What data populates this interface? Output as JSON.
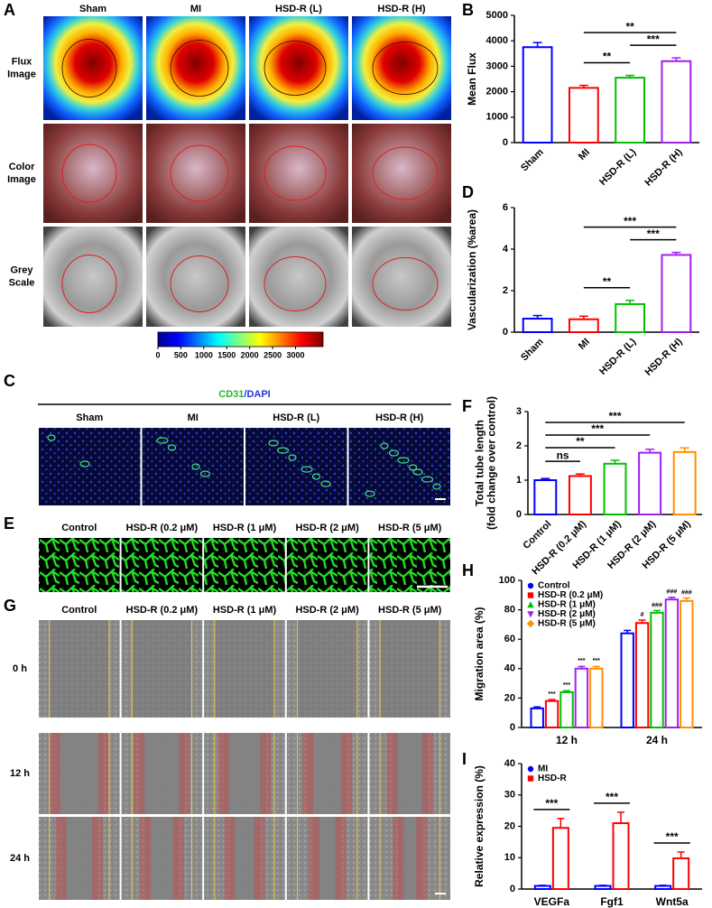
{
  "panel_labels": [
    "A",
    "B",
    "C",
    "D",
    "E",
    "F",
    "G",
    "H",
    "I"
  ],
  "panel_a": {
    "columns": [
      "Sham",
      "MI",
      "HSD-R (L)",
      "HSD-R (H)"
    ],
    "rows": [
      [
        "Flux",
        "Image"
      ],
      [
        "Color",
        "Image"
      ],
      [
        "Grey",
        "Scale"
      ]
    ],
    "colorbar": {
      "lim": [
        0,
        3600
      ],
      "ticks": [
        0,
        500,
        1000,
        1500,
        2000,
        2500,
        3000
      ]
    }
  },
  "panel_c": {
    "title": [
      "CD31",
      "/DAPI"
    ],
    "columns": [
      "Sham",
      "MI",
      "HSD-R (L)",
      "HSD-R (H)"
    ]
  },
  "panel_e": {
    "columns": [
      "Control",
      "HSD-R (0.2 μM)",
      "HSD-R (1 μM)",
      "HSD-R (2 μM)",
      "HSD-R (5 μM)"
    ]
  },
  "panel_g": {
    "columns": [
      "Control",
      "HSD-R (0.2 μM)",
      "HSD-R (1 μM)",
      "HSD-R (2 μM)",
      "HSD-R (5 μM)"
    ],
    "rows": [
      "0 h",
      "12 h",
      "24 h"
    ]
  },
  "chart_data": [
    {
      "type": "bar",
      "ylabel": "Mean Flux",
      "categories": [
        "Sham",
        "MI",
        "HSD-R (L)",
        "HSD-R (H)"
      ],
      "values": [
        3750,
        2150,
        2550,
        3200
      ],
      "errors": [
        180,
        100,
        90,
        130
      ],
      "colors": [
        "#0000ff",
        "#ff0000",
        "#00c000",
        "#a020f0"
      ],
      "ylim": [
        0,
        5000
      ],
      "yticks": [
        0,
        1000,
        2000,
        3000,
        4000,
        5000
      ],
      "annotations": [
        {
          "text": "**",
          "between": [
            "MI",
            "HSD-R (L)"
          ]
        },
        {
          "text": "***",
          "between": [
            "HSD-R (L)",
            "HSD-R (H)"
          ]
        },
        {
          "text": "**",
          "between": [
            "MI",
            "HSD-R (H)"
          ]
        }
      ]
    },
    {
      "type": "bar",
      "ylabel": "Vascularization (%area)",
      "categories": [
        "Sham",
        "MI",
        "HSD-R (L)",
        "HSD-R (H)"
      ],
      "values": [
        0.65,
        0.62,
        1.35,
        3.72
      ],
      "errors": [
        0.15,
        0.15,
        0.18,
        0.12
      ],
      "colors": [
        "#0000ff",
        "#ff0000",
        "#00c000",
        "#a020f0"
      ],
      "ylim": [
        0,
        6
      ],
      "yticks": [
        0,
        2,
        4,
        6
      ],
      "annotations": [
        {
          "text": "**",
          "between": [
            "MI",
            "HSD-R (L)"
          ]
        },
        {
          "text": "***",
          "between": [
            "HSD-R (L)",
            "HSD-R (H)"
          ]
        },
        {
          "text": "***",
          "between": [
            "MI",
            "HSD-R (H)"
          ]
        }
      ]
    },
    {
      "type": "bar",
      "ylabel": [
        "Total tube length",
        "(fold change over control)"
      ],
      "categories": [
        "Control",
        "HSD-R (0.2 μM)",
        "HSD-R (1 μM)",
        "HSD-R (2 μM)",
        "HSD-R (5 μM)"
      ],
      "values": [
        1.0,
        1.12,
        1.48,
        1.8,
        1.82
      ],
      "errors": [
        0.05,
        0.06,
        0.1,
        0.1,
        0.12
      ],
      "colors": [
        "#0000ff",
        "#ff0000",
        "#00c000",
        "#a020f0",
        "#ff9000"
      ],
      "ylim": [
        0,
        3
      ],
      "yticks": [
        0,
        1,
        2,
        3
      ],
      "annotations": [
        {
          "text": "ns",
          "between": [
            "Control",
            "HSD-R (0.2 μM)"
          ]
        },
        {
          "text": "**",
          "between": [
            "Control",
            "HSD-R (1 μM)"
          ]
        },
        {
          "text": "***",
          "between": [
            "Control",
            "HSD-R (2 μM)"
          ]
        },
        {
          "text": "***",
          "between": [
            "Control",
            "HSD-R (5 μM)"
          ]
        }
      ]
    },
    {
      "type": "grouped_bar",
      "ylabel": "Migration area (%)",
      "categories": [
        "12 h",
        "24 h"
      ],
      "ylim": [
        0,
        100
      ],
      "yticks": [
        0,
        20,
        40,
        60,
        80,
        100
      ],
      "legend": "upper left",
      "series": [
        {
          "name": "Control",
          "color": "#0000ff",
          "marker": "circle",
          "values": [
            13,
            64
          ],
          "errors": [
            1,
            2
          ],
          "annotations": [
            null,
            null
          ]
        },
        {
          "name": "HSD-R (0.2 μM)",
          "color": "#ff0000",
          "marker": "square",
          "values": [
            18,
            71
          ],
          "errors": [
            1,
            2
          ],
          "annotations": [
            "***",
            "#"
          ]
        },
        {
          "name": "HSD-R (1 μM)",
          "color": "#00c000",
          "marker": "triangle",
          "values": [
            24,
            78
          ],
          "errors": [
            1,
            1.5
          ],
          "annotations": [
            "***",
            "###"
          ]
        },
        {
          "name": "HSD-R (2 μM)",
          "color": "#a020f0",
          "marker": "triangle-down",
          "values": [
            40,
            87
          ],
          "errors": [
            1.5,
            1.5
          ],
          "annotations": [
            "***",
            "###"
          ]
        },
        {
          "name": "HSD-R (5 μM)",
          "color": "#ff9000",
          "marker": "diamond",
          "values": [
            40,
            86
          ],
          "errors": [
            1.5,
            2
          ],
          "annotations": [
            "***",
            "###"
          ]
        }
      ]
    },
    {
      "type": "grouped_bar",
      "ylabel": "Relative expression (%)",
      "categories": [
        "VEGFa",
        "Fgf1",
        "Wnt5a"
      ],
      "ylim": [
        0,
        40
      ],
      "yticks": [
        0,
        10,
        20,
        30,
        40
      ],
      "legend": "upper left",
      "group_annotations": [
        "***",
        "***",
        "***"
      ],
      "series": [
        {
          "name": "MI",
          "color": "#0000ff",
          "marker": "circle",
          "values": [
            1,
            1,
            1
          ],
          "errors": [
            0.2,
            0.2,
            0.2
          ]
        },
        {
          "name": "HSD-R",
          "color": "#ff0000",
          "marker": "square",
          "values": [
            19.5,
            21,
            9.8
          ],
          "errors": [
            3,
            3.5,
            2
          ]
        }
      ]
    }
  ]
}
